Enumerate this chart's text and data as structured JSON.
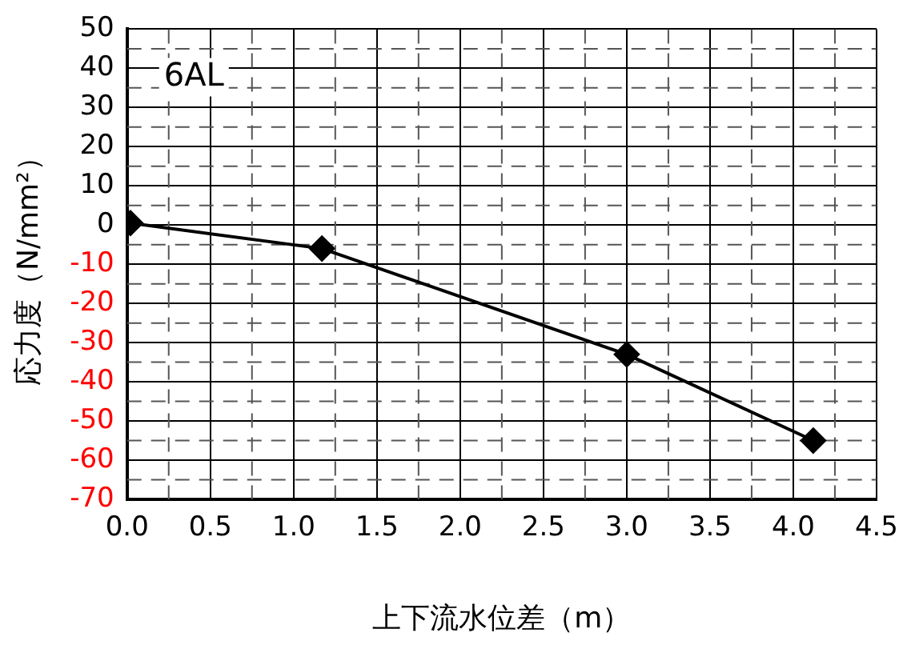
{
  "chart_data": {
    "type": "line",
    "xlabel": "上下流水位差（m）",
    "ylabel": "応力度（N/mm²）",
    "annotations": [
      "6AL"
    ],
    "x": [
      0.02,
      1.17,
      3.0,
      4.12
    ],
    "series": [
      {
        "color": "#000000",
        "values": [
          0.5,
          -6,
          -33,
          -55
        ]
      }
    ],
    "xlim": [
      0,
      4.5
    ],
    "xticks": [
      {
        "value": 0,
        "label": "0.0"
      },
      0.5,
      {
        "value": 1,
        "label": "1.0"
      },
      1.5,
      {
        "value": 2,
        "label": "2.0"
      },
      2.5,
      {
        "value": 3,
        "label": "3.0"
      },
      3.5,
      {
        "value": 4,
        "label": "4.0"
      },
      4.5
    ],
    "ylim": [
      -70,
      50
    ],
    "yticks": [
      -70,
      -60,
      -50,
      -40,
      -30,
      -20,
      -10,
      0,
      10,
      20,
      30,
      40,
      50
    ],
    "grid": true,
    "legend": false,
    "marker": "diamond",
    "line_style": "solid"
  }
}
